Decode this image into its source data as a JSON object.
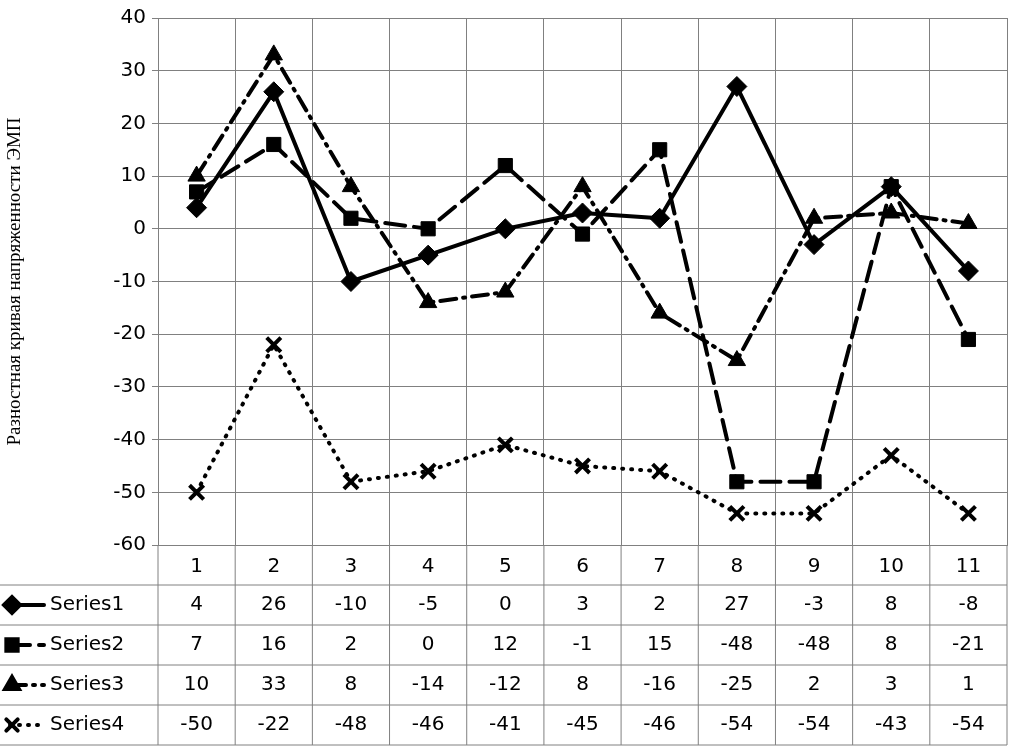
{
  "chart_data": {
    "type": "line",
    "ylabel": "Разностная кривая напряженности ЭМП",
    "categories": [
      "1",
      "2",
      "3",
      "4",
      "5",
      "6",
      "7",
      "8",
      "9",
      "10",
      "11"
    ],
    "series": [
      {
        "name": "Series1",
        "color": "#000000",
        "marker": "diamond",
        "line_style": "solid",
        "values": [
          4,
          26,
          -10,
          -5,
          0,
          3,
          2,
          27,
          -3,
          8,
          -8
        ]
      },
      {
        "name": "Series2",
        "color": "#000000",
        "marker": "square",
        "line_style": "dashed",
        "values": [
          7,
          16,
          2,
          0,
          12,
          -1,
          15,
          -48,
          -48,
          8,
          -21
        ]
      },
      {
        "name": "Series3",
        "color": "#000000",
        "marker": "triangle",
        "line_style": "dashdot",
        "values": [
          10,
          33,
          8,
          -14,
          -12,
          8,
          -16,
          -25,
          2,
          3,
          1
        ]
      },
      {
        "name": "Series4",
        "color": "#000000",
        "marker": "cross",
        "line_style": "dotted",
        "values": [
          -50,
          -22,
          -48,
          -46,
          -41,
          -45,
          -46,
          -54,
          -54,
          -43,
          -54
        ]
      }
    ],
    "ylim": [
      -60,
      40
    ],
    "yticks": [
      -60,
      -50,
      -40,
      -30,
      -20,
      -10,
      0,
      10,
      20,
      30,
      40
    ],
    "grid": true,
    "legend": "bottom",
    "data_labels": true
  }
}
